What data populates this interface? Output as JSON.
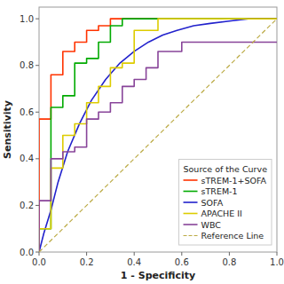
{
  "chart_data": {
    "type": "line",
    "xlabel": "1 - Specificity",
    "ylabel": "Sensitivity",
    "legend_title": "Source of the Curve",
    "xlim": [
      0.0,
      1.0
    ],
    "ylim": [
      0.0,
      1.05
    ],
    "xticks": [
      {
        "value": 0.0,
        "label": "0.0"
      },
      0.2,
      0.4,
      0.6,
      0.8,
      {
        "value": 1.0,
        "label": "1.0"
      }
    ],
    "yticks": [
      {
        "value": 0.0,
        "label": "0.0"
      },
      0.2,
      0.4,
      0.6,
      0.8,
      {
        "value": 1.0,
        "label": "1.0"
      }
    ],
    "grid": false,
    "legend": "right",
    "series": [
      {
        "name": "sTREM-1+SOFA",
        "color": "#FF3300",
        "x": [
          0.0,
          0.0,
          0.05,
          0.05,
          0.1,
          0.1,
          0.15,
          0.15,
          0.2,
          0.2,
          0.25,
          0.25,
          0.3,
          0.3,
          0.35,
          0.35,
          1.0
        ],
        "values": [
          0.0,
          0.57,
          0.57,
          0.76,
          0.76,
          0.86,
          0.86,
          0.9,
          0.9,
          0.95,
          0.95,
          0.97,
          0.97,
          1.0,
          1.0,
          1.0,
          1.0
        ]
      },
      {
        "name": "sTREM-1",
        "color": "#00AA00",
        "x": [
          0.0,
          0.0,
          0.05,
          0.05,
          0.1,
          0.1,
          0.15,
          0.15,
          0.2,
          0.2,
          0.25,
          0.25,
          0.3,
          0.3,
          0.35,
          0.35,
          1.0
        ],
        "values": [
          0.0,
          0.1,
          0.1,
          0.62,
          0.62,
          0.67,
          0.67,
          0.81,
          0.81,
          0.83,
          0.83,
          0.9,
          0.9,
          0.97,
          0.97,
          1.0,
          1.0
        ]
      },
      {
        "name": "SOFA",
        "color": "#2222CC",
        "x": [
          0.0,
          0.02,
          0.05,
          0.08,
          0.12,
          0.17,
          0.22,
          0.28,
          0.34,
          0.4,
          0.46,
          0.52,
          0.58,
          0.65,
          0.72,
          0.8,
          0.88,
          0.95,
          1.0
        ],
        "values": [
          0.0,
          0.08,
          0.18,
          0.3,
          0.43,
          0.55,
          0.65,
          0.74,
          0.81,
          0.86,
          0.9,
          0.93,
          0.95,
          0.97,
          0.98,
          0.99,
          1.0,
          1.0,
          1.0
        ]
      },
      {
        "name": "APACHE II",
        "color": "#DDCC00",
        "x": [
          0.0,
          0.0,
          0.05,
          0.05,
          0.1,
          0.1,
          0.15,
          0.15,
          0.2,
          0.2,
          0.25,
          0.25,
          0.3,
          0.3,
          0.35,
          0.35,
          0.4,
          0.4,
          0.5,
          0.5,
          1.0
        ],
        "values": [
          0.0,
          0.1,
          0.1,
          0.36,
          0.36,
          0.5,
          0.5,
          0.55,
          0.55,
          0.64,
          0.64,
          0.71,
          0.71,
          0.79,
          0.79,
          0.81,
          0.81,
          0.95,
          0.95,
          1.0,
          1.0
        ]
      },
      {
        "name": "WBC",
        "color": "#884499",
        "x": [
          0.0,
          0.0,
          0.05,
          0.05,
          0.1,
          0.1,
          0.15,
          0.15,
          0.2,
          0.2,
          0.25,
          0.25,
          0.3,
          0.3,
          0.35,
          0.35,
          0.4,
          0.4,
          0.45,
          0.45,
          0.5,
          0.5,
          0.6,
          0.6,
          1.0
        ],
        "values": [
          0.0,
          0.22,
          0.22,
          0.4,
          0.4,
          0.43,
          0.43,
          0.45,
          0.45,
          0.57,
          0.57,
          0.6,
          0.6,
          0.64,
          0.64,
          0.71,
          0.71,
          0.74,
          0.74,
          0.79,
          0.79,
          0.86,
          0.86,
          0.9,
          0.9
        ]
      },
      {
        "name": "Reference Line",
        "color": "#BBAA44",
        "line_style": "dashed",
        "x": [
          0.0,
          1.0
        ],
        "values": [
          0.0,
          1.0
        ]
      }
    ]
  }
}
